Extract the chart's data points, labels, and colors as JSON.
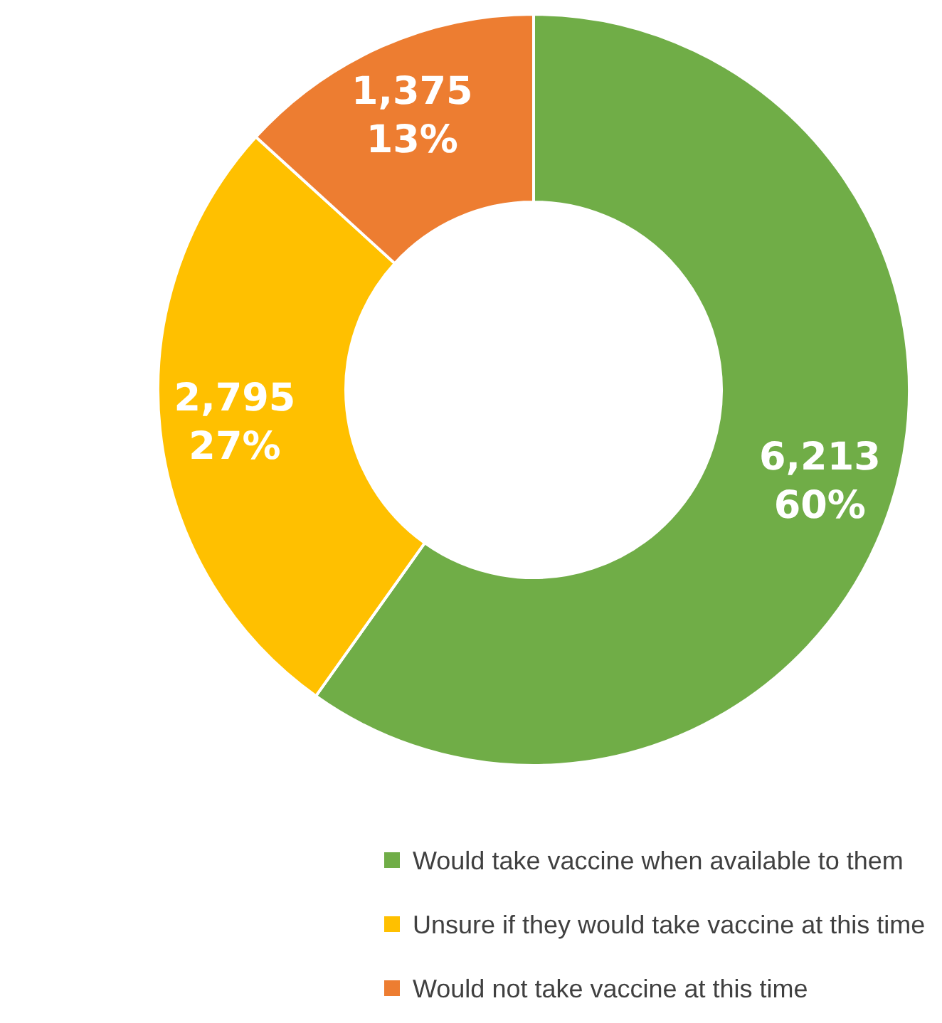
{
  "chart_data": {
    "type": "donut",
    "categories": [
      "Would take vaccine when available to them",
      "Unsure if they would take vaccine at this time",
      "Would not take vaccine at this time"
    ],
    "values": [
      6213,
      2795,
      1375
    ],
    "colors": [
      "#70ad47",
      "#ffc000",
      "#ed7d31"
    ],
    "value_labels": [
      "6,213\n60%",
      "2,795\n27%",
      "1,375\n13%"
    ],
    "legend": "bottom"
  }
}
